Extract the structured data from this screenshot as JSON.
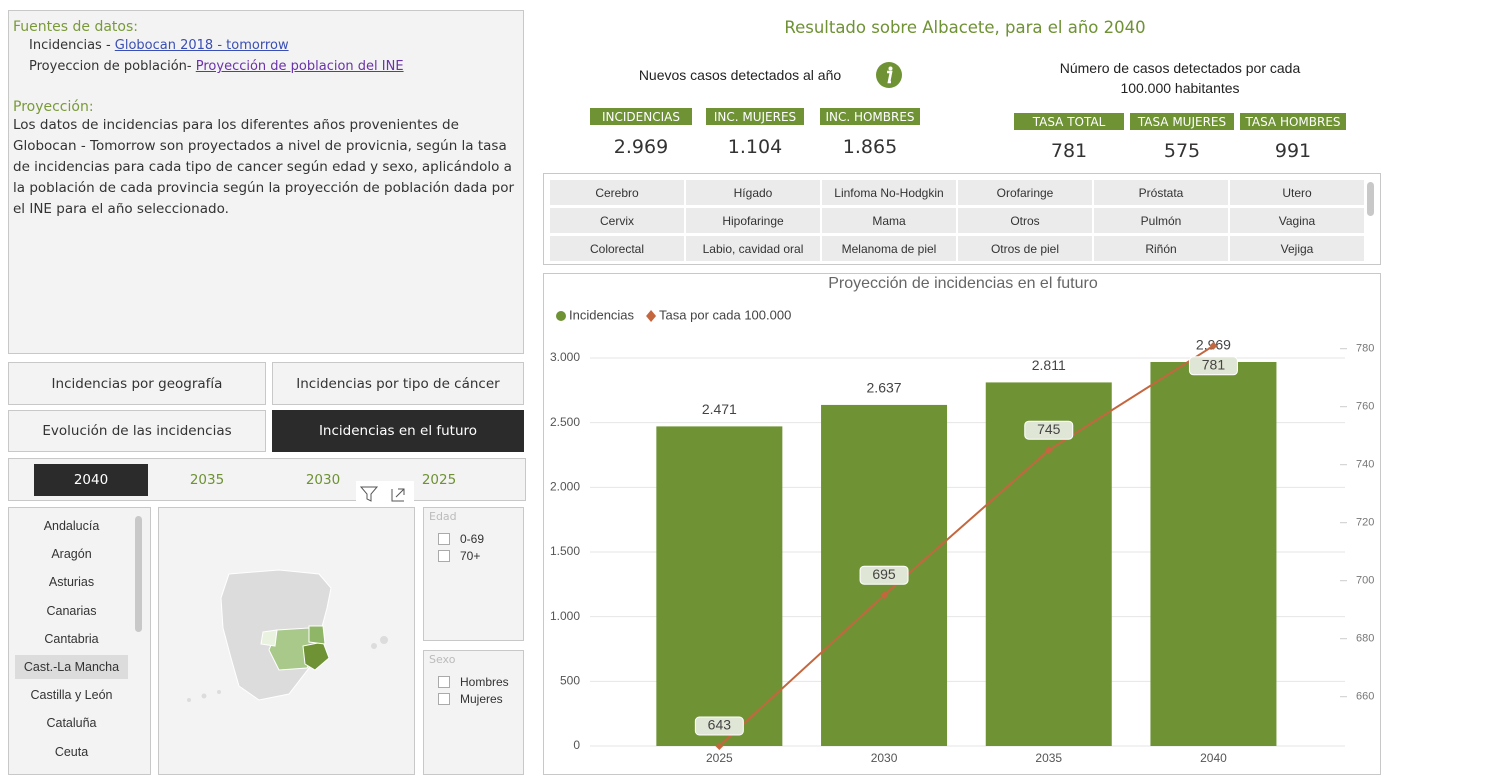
{
  "sources": {
    "title": "Fuentes de datos:",
    "items": [
      {
        "label": "Incidencias - ",
        "link": "Globocan 2018 - tomorrow"
      },
      {
        "label": "Proyeccion de población- ",
        "link": "Proyección de poblacion del INE"
      }
    ]
  },
  "projection": {
    "title": "Proyección:",
    "text": "Los datos de incidencias para los diferentes años provenientes de Globocan - Tomorrow son proyectados a nivel de provicnia, según la tasa de incidencias para cada tipo de cancer según edad y sexo, aplicándolo a la población de cada provincia según la proyección de población dada por el INE para el año seleccionado."
  },
  "nav": {
    "buttons": [
      "Incidencias por geografía",
      "Incidencias por tipo de cáncer",
      "Evolución de las incidencias",
      "Incidencias en el futuro"
    ],
    "selected": 3
  },
  "years": {
    "items": [
      "2040",
      "2035",
      "2030",
      "2025"
    ],
    "selected": 0
  },
  "regions": {
    "items": [
      "Andalucía",
      "Aragón",
      "Asturias",
      "Canarias",
      "Cantabria",
      "Cast.-La Mancha",
      "Castilla y León",
      "Cataluña",
      "Ceuta"
    ],
    "selected": 5
  },
  "filters": {
    "age": {
      "title": "Edad",
      "options": [
        "0-69",
        "70+"
      ]
    },
    "sex": {
      "title": "Sexo",
      "options": [
        "Hombres",
        "Mujeres"
      ]
    }
  },
  "header": {
    "title": "Resultado sobre  Albacete, para el año 2040"
  },
  "kpis": {
    "new_cases": {
      "title": "Nuevos casos detectados al año",
      "items": [
        {
          "label": "INCIDENCIAS",
          "value": "2.969"
        },
        {
          "label": "INC. MUJERES",
          "value": "1.104"
        },
        {
          "label": "INC. HOMBRES",
          "value": "1.865"
        }
      ]
    },
    "rate": {
      "title": "Número de casos detectados por cada 100.000 habitantes",
      "items": [
        {
          "label": "TASA TOTAL",
          "value": "781"
        },
        {
          "label": "TASA MUJERES",
          "value": "575"
        },
        {
          "label": "TASA HOMBRES",
          "value": "991"
        }
      ]
    }
  },
  "cancer_types": [
    "Cerebro",
    "Hígado",
    "Linfoma No-Hodgkin",
    "Orofaringe",
    "Próstata",
    "Utero",
    "Cervix",
    "Hipofaringe",
    "Mama",
    "Otros",
    "Pulmón",
    "Vagina",
    "Colorectal",
    "Labio, cavidad oral",
    "Melanoma de piel",
    "Otros de piel",
    "Riñón",
    "Vejiga"
  ],
  "chart_data": {
    "type": "combo",
    "title": "Proyección de incidencias en el futuro",
    "categories": [
      "2025",
      "2030",
      "2035",
      "2040"
    ],
    "series": [
      {
        "name": "Incidencias",
        "type": "bar",
        "color": "#6e9234",
        "values": [
          2471,
          2637,
          2811,
          2969
        ],
        "value_labels": [
          "2.471",
          "2.637",
          "2.811",
          "2.969"
        ]
      },
      {
        "name": "Tasa por cada 100.000",
        "type": "line",
        "axis": "y2",
        "color": "#c4673f",
        "values": [
          643,
          695,
          745,
          781
        ]
      }
    ],
    "ylim": [
      0,
      3139
    ],
    "yticks": [
      {
        "value": 0,
        "label": "0"
      },
      {
        "value": 500,
        "label": "500"
      },
      {
        "value": 1000,
        "label": "1.000"
      },
      {
        "value": 1500,
        "label": "1.500"
      },
      {
        "value": 2000,
        "label": "2.000"
      },
      {
        "value": 2500,
        "label": "2.500"
      },
      {
        "value": 3000,
        "label": "3.000"
      }
    ],
    "y2lim": [
      643,
      783
    ],
    "y2ticks": [
      660,
      680,
      700,
      720,
      740,
      760,
      780
    ],
    "grid": true,
    "legend": "top-left"
  }
}
